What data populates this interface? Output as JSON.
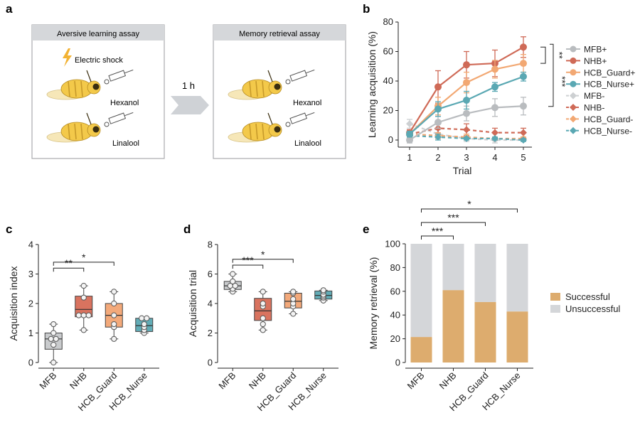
{
  "panel_labels": {
    "a": "a",
    "b": "b",
    "c": "c",
    "d": "d",
    "e": "e"
  },
  "schematic": {
    "aversive_title": "Aversive learning assay",
    "memory_title": "Memory retrieval assay",
    "shock_label": "Electric shock",
    "odor1": "Hexanol",
    "odor2": "Linalool",
    "interval": "1 h",
    "colors": {
      "box_header": "#d5d7da",
      "box_border": "#a9abae",
      "bee": "#f3c94a",
      "bee_dark": "#3a2e10",
      "arrow": "#cfd2d6",
      "bolt": "#f2b233"
    }
  },
  "chart_data": [
    {
      "id": "b",
      "type": "line",
      "xlabel": "Trial",
      "ylabel": "Learning acquisition (%)",
      "x": [
        1,
        2,
        3,
        4,
        5
      ],
      "xlim": [
        0.6,
        5.3
      ],
      "ylim": [
        0,
        80
      ],
      "yticks": [
        0,
        20,
        40,
        60,
        80
      ],
      "legend_position": "right",
      "series": [
        {
          "name": "MFB+",
          "color": "#b9bcbf",
          "marker": "circle",
          "dashed": false,
          "values": [
            0,
            12,
            18,
            22,
            23
          ],
          "err": [
            2,
            4,
            5,
            6,
            6
          ]
        },
        {
          "name": "NHB+",
          "color": "#cf6a57",
          "marker": "circle",
          "dashed": false,
          "values": [
            5,
            36,
            51,
            52,
            63
          ],
          "err": [
            2,
            11,
            9,
            9,
            7
          ]
        },
        {
          "name": "HCB_Guard+",
          "color": "#f2a873",
          "marker": "circle",
          "dashed": false,
          "values": [
            4,
            23,
            39,
            48,
            52
          ],
          "err": [
            2,
            6,
            7,
            6,
            6
          ]
        },
        {
          "name": "HCB_Nurse+",
          "color": "#5aa8b3",
          "marker": "circle",
          "dashed": false,
          "values": [
            4,
            21,
            27,
            36,
            43
          ],
          "err": [
            2,
            5,
            6,
            3,
            3
          ]
        },
        {
          "name": "MFB-",
          "color": "#cdd0d2",
          "marker": "diamond",
          "dashed": true,
          "values": [
            11,
            4,
            1,
            0,
            0
          ],
          "err": [
            3,
            3,
            2,
            2,
            1
          ]
        },
        {
          "name": "NHB-",
          "color": "#cf6a57",
          "marker": "diamond",
          "dashed": true,
          "values": [
            4,
            8,
            7,
            5,
            5
          ],
          "err": [
            2,
            3,
            4,
            3,
            3
          ]
        },
        {
          "name": "HCB_Guard-",
          "color": "#f2a873",
          "marker": "diamond",
          "dashed": true,
          "values": [
            4,
            3,
            2,
            1,
            1
          ],
          "err": [
            2,
            2,
            2,
            1,
            1
          ]
        },
        {
          "name": "HCB_Nurse-",
          "color": "#5aa8b3",
          "marker": "diamond",
          "dashed": true,
          "values": [
            3,
            2,
            1,
            1,
            0
          ],
          "err": [
            2,
            2,
            1,
            1,
            1
          ]
        }
      ],
      "significance": [
        "**",
        "***"
      ]
    },
    {
      "id": "c",
      "type": "box",
      "ylabel": "Acquisition index",
      "categories": [
        "MFB",
        "NHB",
        "HCB_Guard",
        "HCB_Nurse"
      ],
      "colors": [
        "#c9cbcd",
        "#d9735f",
        "#f3a97a",
        "#62acb6"
      ],
      "ylim": [
        0,
        4
      ],
      "yticks": [
        0,
        1,
        2,
        3,
        4
      ],
      "boxes": [
        {
          "min": 0,
          "q1": 0.45,
          "median": 0.8,
          "q3": 1.0,
          "max": 1.3
        },
        {
          "min": 1.1,
          "q1": 1.55,
          "median": 1.8,
          "q3": 2.25,
          "max": 2.6
        },
        {
          "min": 0.8,
          "q1": 1.2,
          "median": 1.6,
          "q3": 2.0,
          "max": 2.4
        },
        {
          "min": 1.0,
          "q1": 1.05,
          "median": 1.25,
          "q3": 1.5,
          "max": 1.5
        }
      ],
      "points": [
        [
          0,
          0.6,
          0.8,
          0.8,
          1.0,
          1.3
        ],
        [
          1.1,
          1.6,
          1.6,
          1.6,
          2.2,
          2.6
        ],
        [
          0.8,
          1.2,
          1.3,
          1.6,
          2.0,
          2.4
        ],
        [
          1.0,
          1.1,
          1.2,
          1.3,
          1.5,
          1.5
        ]
      ],
      "brackets": [
        {
          "from": 0,
          "to": 1,
          "level": 3.2,
          "label": "**"
        },
        {
          "from": 0,
          "to": 2,
          "level": 3.4,
          "label": "*"
        }
      ]
    },
    {
      "id": "d",
      "type": "box",
      "ylabel": "Acquisition trial",
      "categories": [
        "MFB",
        "NHB",
        "HCB_Guard",
        "HCB_Nurse"
      ],
      "colors": [
        "#c9cbcd",
        "#d9735f",
        "#f3a97a",
        "#62acb6"
      ],
      "ylim": [
        0,
        8
      ],
      "yticks": [
        0,
        2,
        4,
        6,
        8
      ],
      "boxes": [
        {
          "min": 4.8,
          "q1": 4.95,
          "median": 5.2,
          "q3": 5.5,
          "max": 6.0
        },
        {
          "min": 2.2,
          "q1": 2.85,
          "median": 3.5,
          "q3": 4.35,
          "max": 4.8
        },
        {
          "min": 3.3,
          "q1": 3.7,
          "median": 4.15,
          "q3": 4.7,
          "max": 4.8
        },
        {
          "min": 4.2,
          "q1": 4.3,
          "median": 4.55,
          "q3": 4.85,
          "max": 4.9
        }
      ],
      "points": [
        [
          4.8,
          5.0,
          5.2,
          5.2,
          5.5,
          6.0
        ],
        [
          2.2,
          2.6,
          3.0,
          3.8,
          4.0,
          4.8
        ],
        [
          3.3,
          3.8,
          4.0,
          4.3,
          4.7,
          4.8
        ],
        [
          4.2,
          4.4,
          4.5,
          4.6,
          4.8,
          4.9
        ]
      ],
      "brackets": [
        {
          "from": 0,
          "to": 1,
          "level": 6.6,
          "label": "***"
        },
        {
          "from": 0,
          "to": 2,
          "level": 7.0,
          "label": "*"
        }
      ]
    },
    {
      "id": "e",
      "type": "stacked_bar",
      "ylabel": "Memory retrieval (%)",
      "categories": [
        "MFB",
        "NHB",
        "HCB_Guard",
        "HCB_Nurse"
      ],
      "ylim": [
        0,
        100
      ],
      "yticks": [
        0,
        20,
        40,
        60,
        80,
        100
      ],
      "legend_position": "right",
      "series": [
        {
          "name": "Successful",
          "color": "#ddac6e",
          "values": [
            21.5,
            61,
            51,
            43
          ]
        },
        {
          "name": "Unsuccessful",
          "color": "#d4d6d9",
          "values": [
            78.5,
            39,
            49,
            57
          ]
        }
      ],
      "brackets": [
        {
          "from": 0,
          "to": 1,
          "label": "***"
        },
        {
          "from": 0,
          "to": 2,
          "label": "***"
        },
        {
          "from": 0,
          "to": 3,
          "label": "*"
        }
      ]
    }
  ]
}
